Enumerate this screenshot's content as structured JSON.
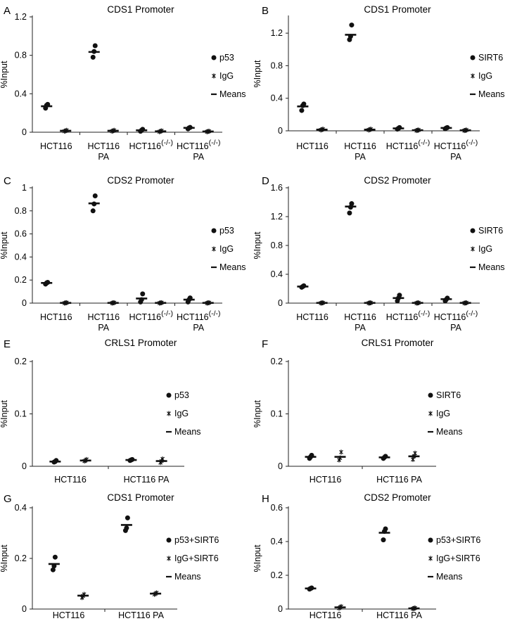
{
  "chart_data": [
    {
      "panel": "A",
      "type": "scatter",
      "title": "CDS1 Promoter",
      "ylabel": "%Input",
      "ylim": [
        0,
        1.2
      ],
      "yticks": [
        0,
        0.4,
        0.8,
        1.2
      ],
      "yticklabels": [
        "0",
        "0.4",
        "0.8",
        "1.2"
      ],
      "categories": [
        {
          "line1": "HCT116",
          "sup": "",
          "line2": ""
        },
        {
          "line1": "HCT116",
          "sup": "",
          "line2": "PA"
        },
        {
          "line1": "HCT116",
          "sup": "(-/-)",
          "line2": ""
        },
        {
          "line1": "HCT116",
          "sup": "(-/-)",
          "line2": "PA"
        }
      ],
      "legend": [
        "p53",
        "IgG",
        "Means"
      ],
      "series": [
        {
          "name": "p53",
          "marker": "dot",
          "points": [
            [
              0.25,
              0.28,
              0.29
            ],
            [
              0.78,
              0.84,
              0.9
            ],
            [
              0.01,
              0.02,
              0.03
            ],
            [
              0.035,
              0.045,
              0.05
            ]
          ],
          "means": [
            0.27,
            0.835,
            0.02,
            0.045
          ]
        },
        {
          "name": "IgG",
          "marker": "star",
          "points": [
            [
              0.01,
              0.015,
              0.02
            ],
            [
              0.01,
              0.015,
              0.02
            ],
            [
              0.005,
              0.01,
              0.015
            ],
            [
              0.005,
              0.008,
              0.01
            ]
          ],
          "means": [
            0.015,
            0.015,
            0.01,
            0.008
          ]
        }
      ]
    },
    {
      "panel": "B",
      "type": "scatter",
      "title": "CDS1 Promoter",
      "ylabel": "%Input",
      "ylim": [
        0,
        1.4
      ],
      "yticks": [
        0,
        0.4,
        0.8,
        1.2
      ],
      "yticklabels": [
        "0",
        "0.4",
        "0.8",
        "1.2"
      ],
      "categories": [
        {
          "line1": "HCT116",
          "sup": "",
          "line2": ""
        },
        {
          "line1": "HCT116",
          "sup": "",
          "line2": "PA"
        },
        {
          "line1": "HCT116",
          "sup": "(-/-)",
          "line2": ""
        },
        {
          "line1": "HCT116",
          "sup": "(-/-)",
          "line2": "PA"
        }
      ],
      "legend": [
        "SIRT6",
        "IgG",
        "Means"
      ],
      "series": [
        {
          "name": "SIRT6",
          "marker": "dot",
          "points": [
            [
              0.25,
              0.31,
              0.33
            ],
            [
              1.12,
              1.16,
              1.3
            ],
            [
              0.02,
              0.03,
              0.04
            ],
            [
              0.025,
              0.035,
              0.04
            ]
          ],
          "means": [
            0.3,
            1.18,
            0.03,
            0.035
          ]
        },
        {
          "name": "IgG",
          "marker": "star",
          "points": [
            [
              0.01,
              0.015,
              0.02
            ],
            [
              0.01,
              0.015,
              0.02
            ],
            [
              0.003,
              0.008,
              0.01
            ],
            [
              0.003,
              0.006,
              0.01
            ]
          ],
          "means": [
            0.015,
            0.015,
            0.007,
            0.006
          ]
        }
      ]
    },
    {
      "panel": "C",
      "type": "scatter",
      "title": "CDS2 Promoter",
      "ylabel": "%Input",
      "ylim": [
        0,
        1
      ],
      "yticks": [
        0,
        0.2,
        0.4,
        0.6,
        0.8,
        1
      ],
      "yticklabels": [
        "0",
        "0.2",
        "0.4",
        "0.6",
        "0.8",
        "1"
      ],
      "categories": [
        {
          "line1": "HCT116",
          "sup": "",
          "line2": ""
        },
        {
          "line1": "HCT116",
          "sup": "",
          "line2": "PA"
        },
        {
          "line1": "HCT116",
          "sup": "(-/-)",
          "line2": ""
        },
        {
          "line1": "HCT116",
          "sup": "(-/-)",
          "line2": "PA"
        }
      ],
      "legend": [
        "p53",
        "IgG",
        "Means"
      ],
      "series": [
        {
          "name": "p53",
          "marker": "dot",
          "points": [
            [
              0.165,
              0.175,
              0.18
            ],
            [
              0.8,
              0.86,
              0.93
            ],
            [
              0.01,
              0.03,
              0.08
            ],
            [
              0.01,
              0.03,
              0.045
            ]
          ],
          "means": [
            0.175,
            0.865,
            0.04,
            0.03
          ]
        },
        {
          "name": "IgG",
          "marker": "star",
          "points": [
            [
              0.0,
              0.002,
              0.004
            ],
            [
              0.0,
              0.002,
              0.004
            ],
            [
              0.0,
              0.002,
              0.004
            ],
            [
              0.0,
              0.002,
              0.004
            ]
          ],
          "means": [
            0.002,
            0.002,
            0.002,
            0.002
          ]
        }
      ]
    },
    {
      "panel": "D",
      "type": "scatter",
      "title": "CDS2 Promoter",
      "ylabel": "%Input",
      "ylim": [
        0,
        1.6
      ],
      "yticks": [
        0,
        0.4,
        0.8,
        1.2,
        1.6
      ],
      "yticklabels": [
        "0",
        "0.4",
        "0.8",
        "1.2",
        "1.6"
      ],
      "categories": [
        {
          "line1": "HCT116",
          "sup": "",
          "line2": ""
        },
        {
          "line1": "HCT116",
          "sup": "",
          "line2": "PA"
        },
        {
          "line1": "HCT116",
          "sup": "(-/-)",
          "line2": ""
        },
        {
          "line1": "HCT116",
          "sup": "(-/-)",
          "line2": "PA"
        }
      ],
      "legend": [
        "SIRT6",
        "IgG",
        "Means"
      ],
      "series": [
        {
          "name": "SIRT6",
          "marker": "dot",
          "points": [
            [
              0.22,
              0.23,
              0.24
            ],
            [
              1.25,
              1.33,
              1.38
            ],
            [
              0.03,
              0.07,
              0.11
            ],
            [
              0.03,
              0.05,
              0.07
            ]
          ],
          "means": [
            0.23,
            1.34,
            0.07,
            0.055
          ]
        },
        {
          "name": "IgG",
          "marker": "star",
          "points": [
            [
              0.0,
              0.003,
              0.005
            ],
            [
              0.0,
              0.003,
              0.005
            ],
            [
              0.0,
              0.003,
              0.005
            ],
            [
              0.0,
              0.003,
              0.005
            ]
          ],
          "means": [
            0.003,
            0.003,
            0.003,
            0.003
          ]
        }
      ]
    },
    {
      "panel": "E",
      "type": "scatter",
      "title": "CRLS1 Promoter",
      "ylabel": "%Input",
      "ylim": [
        0,
        0.2
      ],
      "yticks": [
        0,
        0.1,
        0.2
      ],
      "yticklabels": [
        "0",
        "0.1",
        "0.2"
      ],
      "categories": [
        {
          "line1": "HCT116",
          "sup": "",
          "line2": ""
        },
        {
          "line1": "HCT116 PA",
          "sup": "",
          "line2": ""
        }
      ],
      "legend": [
        "p53",
        "IgG",
        "Means"
      ],
      "series": [
        {
          "name": "p53",
          "marker": "dot",
          "points": [
            [
              0.008,
              0.009,
              0.011
            ],
            [
              0.011,
              0.012,
              0.013
            ]
          ],
          "means": [
            0.009,
            0.012
          ]
        },
        {
          "name": "IgG",
          "marker": "star",
          "points": [
            [
              0.01,
              0.011,
              0.013
            ],
            [
              0.007,
              0.01,
              0.014
            ]
          ],
          "means": [
            0.011,
            0.01
          ]
        }
      ]
    },
    {
      "panel": "F",
      "type": "scatter",
      "title": "CRLS1 Promoter",
      "ylabel": "%Input",
      "ylim": [
        0,
        0.2
      ],
      "yticks": [
        0,
        0.1,
        0.2
      ],
      "yticklabels": [
        "0",
        "0.1",
        "0.2"
      ],
      "categories": [
        {
          "line1": "HCT116",
          "sup": "",
          "line2": ""
        },
        {
          "line1": "HCT116 PA",
          "sup": "",
          "line2": ""
        }
      ],
      "legend": [
        "SIRT6",
        "IgG",
        "Means"
      ],
      "series": [
        {
          "name": "SIRT6",
          "marker": "dot",
          "points": [
            [
              0.015,
              0.018,
              0.021
            ],
            [
              0.015,
              0.017,
              0.019
            ]
          ],
          "means": [
            0.018,
            0.017
          ]
        },
        {
          "name": "IgG",
          "marker": "star",
          "points": [
            [
              0.012,
              0.016,
              0.027
            ],
            [
              0.013,
              0.019,
              0.025
            ]
          ],
          "means": [
            0.018,
            0.019
          ]
        }
      ]
    },
    {
      "panel": "G",
      "type": "scatter",
      "title": "CDS1 Promoter",
      "ylabel": "%Input",
      "ylim": [
        0,
        0.4
      ],
      "yticks": [
        0,
        0.2,
        0.4
      ],
      "yticklabels": [
        "0",
        "0.2",
        "0.4"
      ],
      "categories": [
        {
          "line1": "HCT116",
          "sup": "",
          "line2": ""
        },
        {
          "line1": "HCT116 PA",
          "sup": "",
          "line2": ""
        }
      ],
      "legend": [
        "p53+SIRT6",
        "IgG+SIRT6",
        "Means"
      ],
      "series": [
        {
          "name": "p53+SIRT6",
          "marker": "dot",
          "points": [
            [
              0.155,
              0.17,
              0.205
            ],
            [
              0.31,
              0.32,
              0.36
            ]
          ],
          "means": [
            0.178,
            0.332
          ]
        },
        {
          "name": "IgG+SIRT6",
          "marker": "star",
          "points": [
            [
              0.045,
              0.052,
              0.058
            ],
            [
              0.058,
              0.061,
              0.064
            ]
          ],
          "means": [
            0.053,
            0.061
          ]
        }
      ]
    },
    {
      "panel": "H",
      "type": "scatter",
      "title": "CDS2 Promoter",
      "ylabel": "%Input",
      "ylim": [
        0,
        0.6
      ],
      "yticks": [
        0,
        0.2,
        0.4,
        0.6
      ],
      "yticklabels": [
        "0",
        "0.2",
        "0.4",
        "0.6"
      ],
      "categories": [
        {
          "line1": "HCT116",
          "sup": "",
          "line2": ""
        },
        {
          "line1": "HCT116 PA",
          "sup": "",
          "line2": ""
        }
      ],
      "legend": [
        "p53+SIRT6",
        "IgG+SIRT6",
        "Means"
      ],
      "series": [
        {
          "name": "p53+SIRT6",
          "marker": "dot",
          "points": [
            [
              0.118,
              0.122,
              0.125
            ],
            [
              0.41,
              0.46,
              0.475
            ]
          ],
          "means": [
            0.122,
            0.452
          ]
        },
        {
          "name": "IgG+SIRT6",
          "marker": "star",
          "points": [
            [
              0.005,
              0.01,
              0.015
            ],
            [
              0.002,
              0.004,
              0.006
            ]
          ],
          "means": [
            0.01,
            0.004
          ]
        }
      ]
    }
  ]
}
